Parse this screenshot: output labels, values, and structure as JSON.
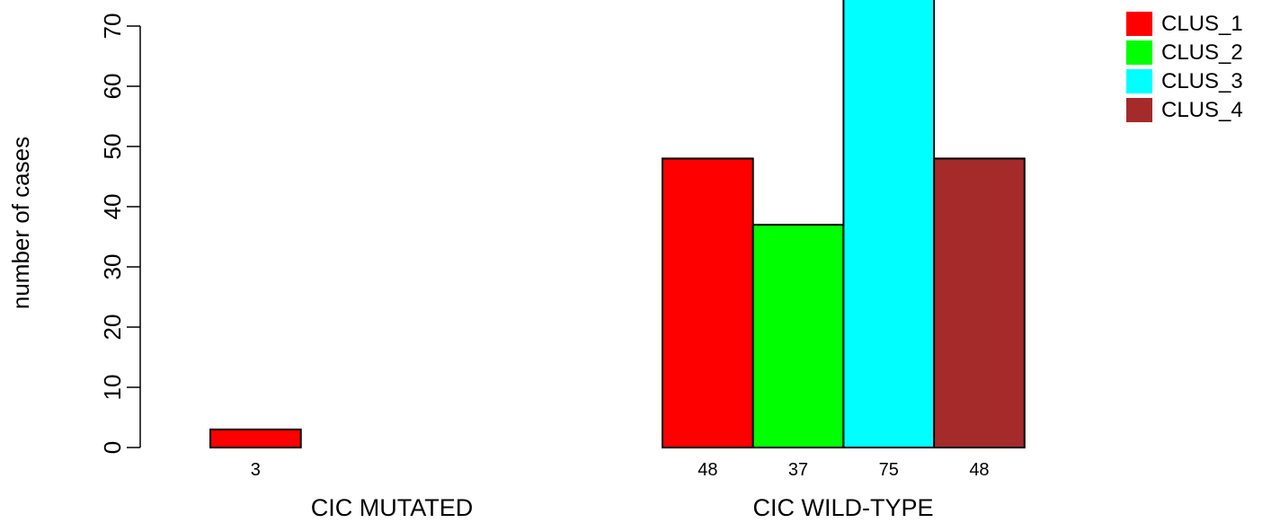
{
  "chart_data": {
    "type": "bar",
    "groups": [
      "CIC MUTATED",
      "CIC WILD-TYPE"
    ],
    "series": [
      {
        "name": "CLUS_1",
        "color": "#ff0000",
        "values": [
          3,
          48
        ]
      },
      {
        "name": "CLUS_2",
        "color": "#00ff00",
        "values": [
          0,
          37
        ]
      },
      {
        "name": "CLUS_3",
        "color": "#00ffff",
        "values": [
          0,
          75
        ]
      },
      {
        "name": "CLUS_4",
        "color": "#a52a2a",
        "values": [
          0,
          48
        ]
      }
    ],
    "value_labels": [
      [
        "3",
        "",
        "",
        ""
      ],
      [
        "48",
        "37",
        "75",
        "48"
      ]
    ],
    "ylabel": "number of cases",
    "yticks": [
      0,
      10,
      20,
      30,
      40,
      50,
      60,
      70
    ],
    "ylim": [
      0,
      75
    ],
    "grid": false,
    "legend_position": "top-right"
  }
}
